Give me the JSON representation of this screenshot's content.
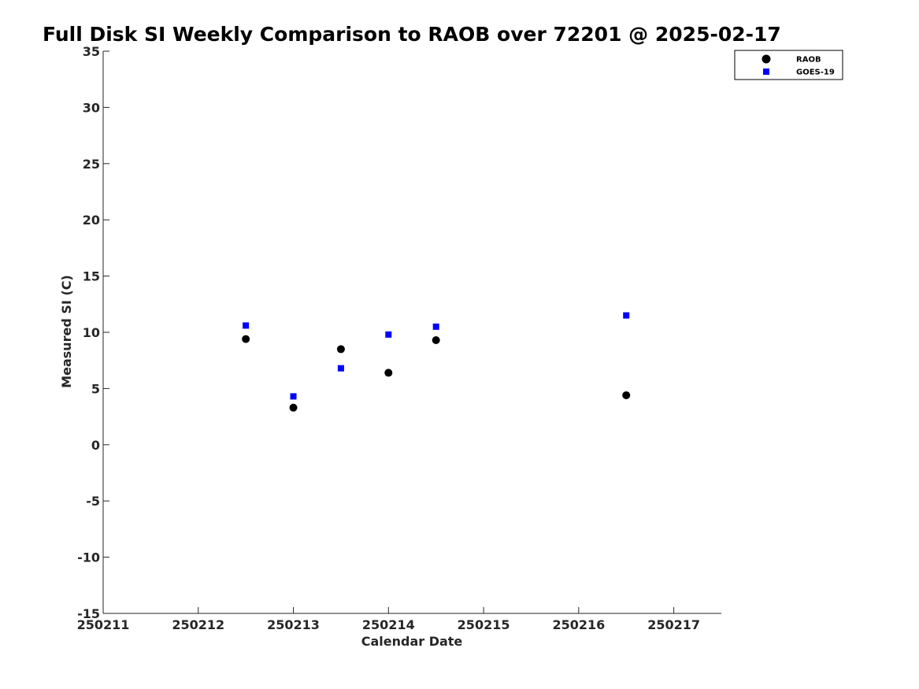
{
  "chart_data": {
    "type": "scatter",
    "title": "Full Disk SI Weekly Comparison to RAOB over 72201 @ 2025-02-17",
    "xlabel": "Calendar Date",
    "ylabel": "Measured SI (C)",
    "xlim": [
      250211,
      250217.5
    ],
    "ylim": [
      -15,
      35
    ],
    "xticks": [
      250211,
      250212,
      250213,
      250214,
      250215,
      250216,
      250217
    ],
    "xtick_labels": [
      "250211",
      "250212",
      "250213",
      "250214",
      "250215",
      "250216",
      "250217"
    ],
    "yticks": [
      -15,
      -10,
      -5,
      0,
      5,
      10,
      15,
      20,
      25,
      30,
      35
    ],
    "ytick_labels": [
      "-15",
      "-10",
      "-5",
      "0",
      "5",
      "10",
      "15",
      "20",
      "25",
      "30",
      "35"
    ],
    "legend_position": "top-right",
    "series": [
      {
        "name": "RAOB",
        "marker": "circle",
        "color": "#000000",
        "x": [
          250212.5,
          250213,
          250213.5,
          250214,
          250214.5,
          250216.5
        ],
        "y": [
          9.4,
          3.3,
          8.5,
          6.4,
          9.3,
          4.4
        ]
      },
      {
        "name": "GOES-19",
        "marker": "square",
        "color": "#0000ff",
        "x": [
          250212.5,
          250213,
          250213.5,
          250214,
          250214.5,
          250216.5
        ],
        "y": [
          10.6,
          4.3,
          6.8,
          9.8,
          10.5,
          11.5
        ]
      }
    ]
  }
}
